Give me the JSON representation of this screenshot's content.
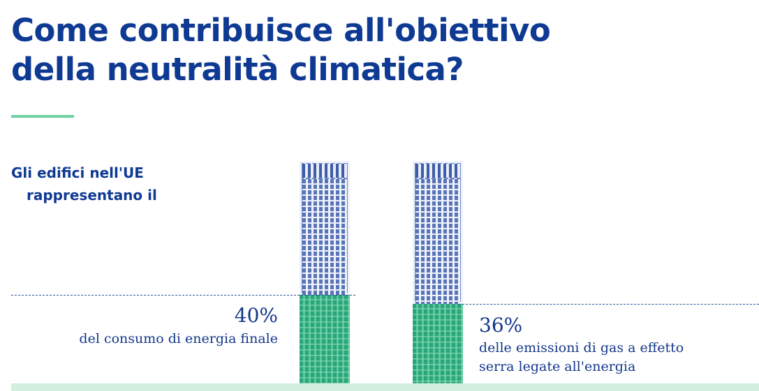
{
  "title": {
    "line1": "Come contribuisce all'obiettivo",
    "line2": "della neutralità climatica?"
  },
  "intro": {
    "line1": "Gli edifici nell'UE",
    "line2": "rappresentano il"
  },
  "colors": {
    "title": "#0f3a93",
    "accent": "#6fd0a2",
    "fill": "#2aa57a",
    "building": "#6f86c4",
    "ground": "#d2efe0"
  },
  "chart_data": {
    "type": "bar",
    "categories": [
      "del consumo di energia finale",
      "delle emissioni di gas a effetto serra legate all'energia"
    ],
    "values": [
      40,
      36
    ],
    "ylim": [
      0,
      100
    ],
    "value_labels": [
      "40%",
      "36%"
    ],
    "descriptions": [
      [
        "del consumo di energia finale"
      ],
      [
        "delle emissioni di gas a effetto",
        "serra legate all'energia"
      ]
    ]
  }
}
